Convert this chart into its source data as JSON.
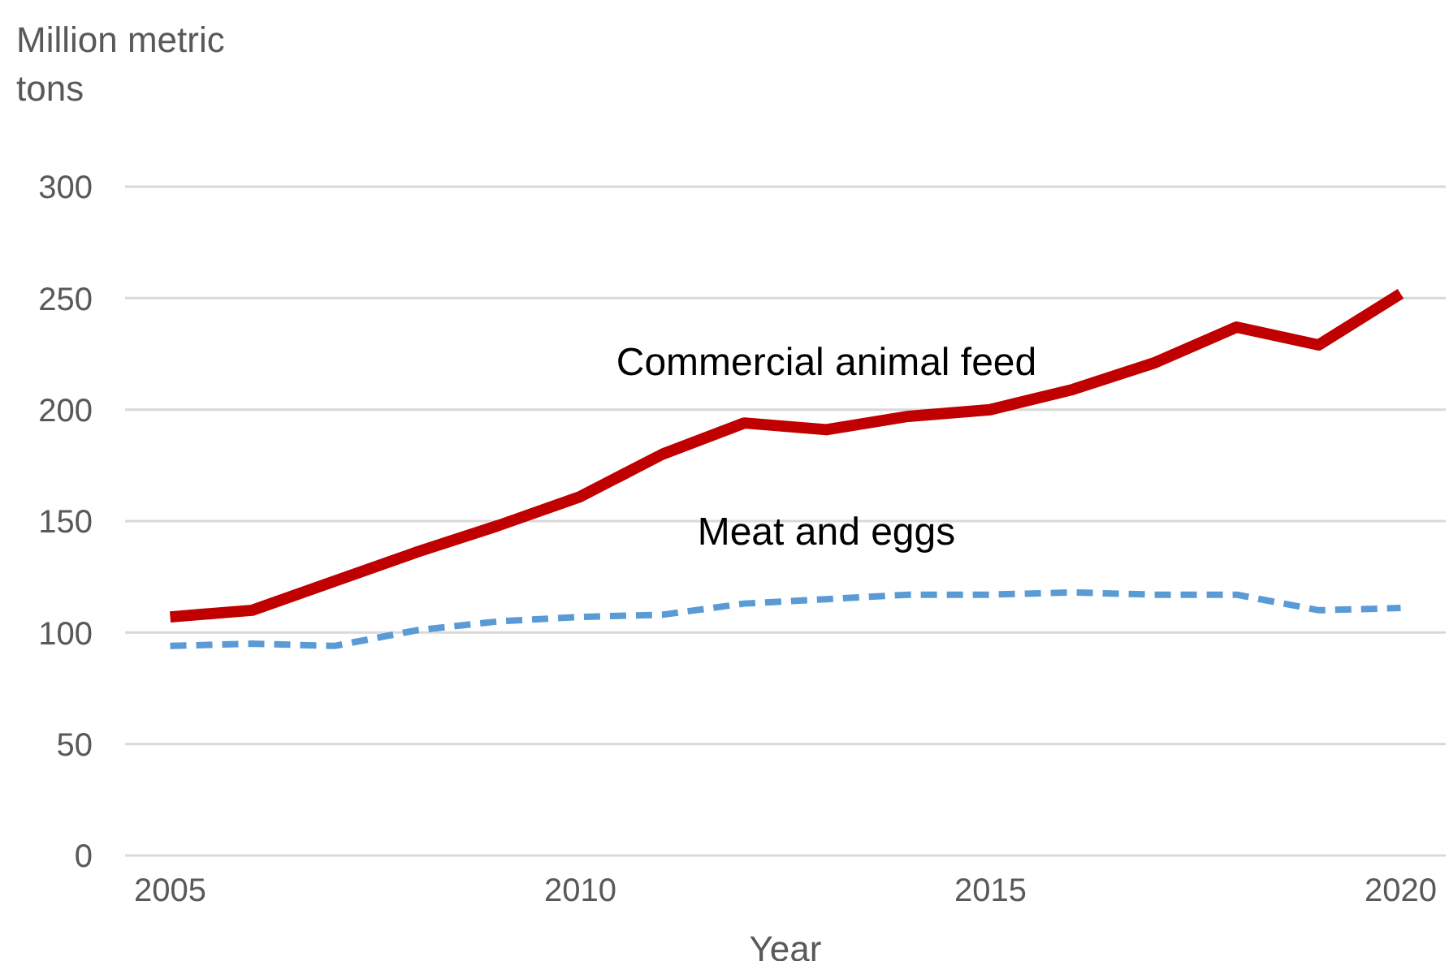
{
  "chart_data": {
    "type": "line",
    "xlabel": "Year",
    "ylabel": "Million metric tons",
    "x": [
      2005,
      2006,
      2007,
      2008,
      2009,
      2010,
      2011,
      2012,
      2013,
      2014,
      2015,
      2016,
      2017,
      2018,
      2019,
      2020
    ],
    "series": [
      {
        "name": "Commercial animal feed",
        "color": "#c00000",
        "line_style": "solid",
        "values": [
          107,
          110,
          123,
          136,
          148,
          161,
          180,
          194,
          191,
          197,
          200,
          209,
          221,
          237,
          229,
          252
        ]
      },
      {
        "name": "Meat and eggs",
        "color": "#5b9bd5",
        "line_style": "dashed",
        "values": [
          94,
          95,
          94,
          101,
          105,
          107,
          108,
          113,
          115,
          117,
          117,
          118,
          117,
          117,
          110,
          111
        ]
      }
    ],
    "xlim": [
      2004.45,
      2020.55
    ],
    "xticks": [
      2005,
      2010,
      2015,
      2020
    ],
    "ylim": [
      0,
      300
    ],
    "yticks": [
      0,
      50,
      100,
      150,
      200,
      250,
      300
    ],
    "grid": "y",
    "legend": false,
    "marker": "none"
  }
}
